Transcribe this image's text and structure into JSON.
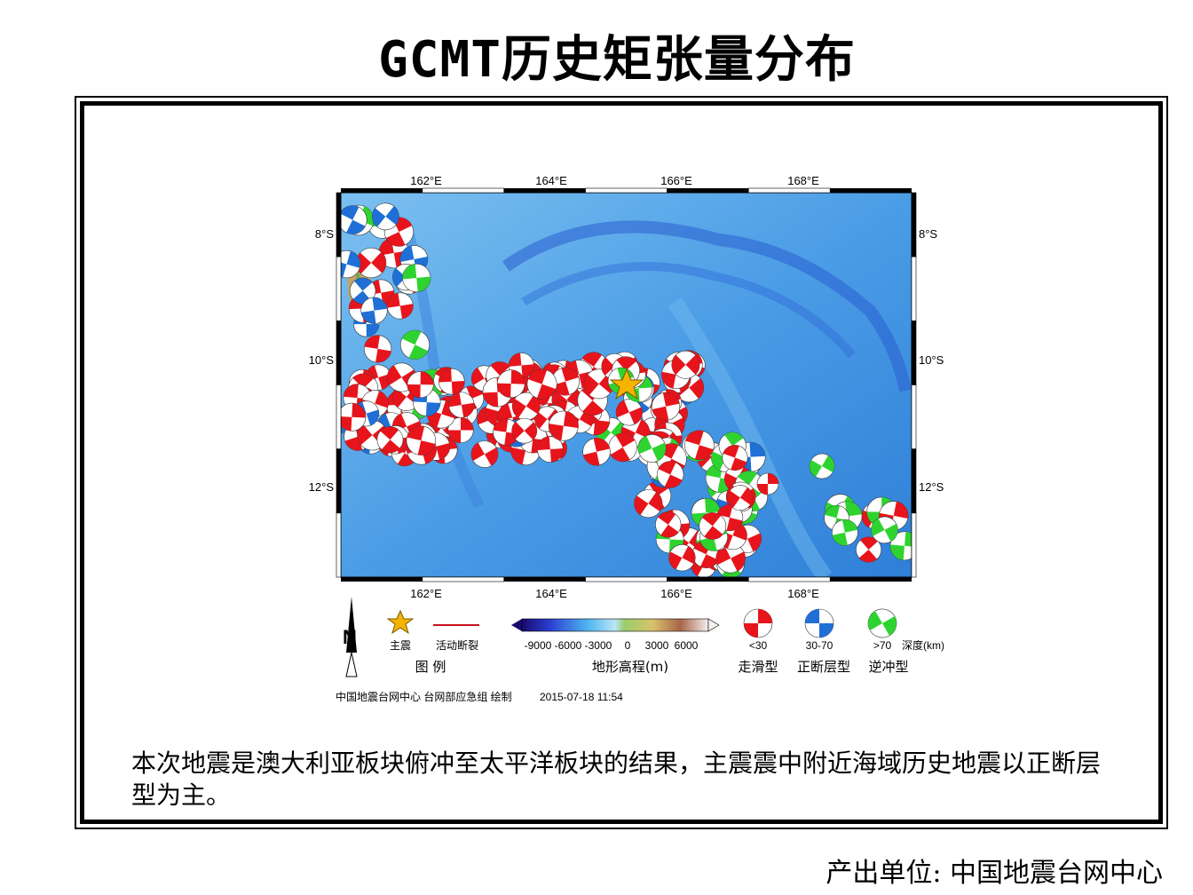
{
  "title": "GCMT历史矩张量分布",
  "map": {
    "lon_ticks": [
      "162°E",
      "164°E",
      "166°E",
      "168°E"
    ],
    "lat_ticks": [
      "8°S",
      "10°S",
      "12°S"
    ]
  },
  "legend": {
    "north_label": "N",
    "mainshock_label": "主震",
    "fault_label": "活动断裂",
    "legend_title": "图  例",
    "colorbar_ticks": [
      "-9000",
      "-6000",
      "-3000",
      "0",
      "3000",
      "6000"
    ],
    "colorbar_title": "地形高程(m)",
    "depth_classes": [
      "<30",
      "30-70",
      ">70"
    ],
    "depth_unit": "深度(km)",
    "mechanisms": [
      "走滑型",
      "正断层型",
      "逆冲型"
    ],
    "credit": "中国地震台网中心 台网部应急组 绘制",
    "datetime": "2015-07-18 11:54"
  },
  "description": "本次地震是澳大利亚板块俯冲至太平洋板块的结果，主震震中附近海域历史地震以正断层型为主。",
  "producer": "产出单位: 中国地震台网中心",
  "colors": {
    "strike_slip": "#e8141b",
    "normal": "#1f6fd6",
    "thrust": "#2fd32f",
    "ocean": "#5aa6e8",
    "star": "#f4b400"
  }
}
